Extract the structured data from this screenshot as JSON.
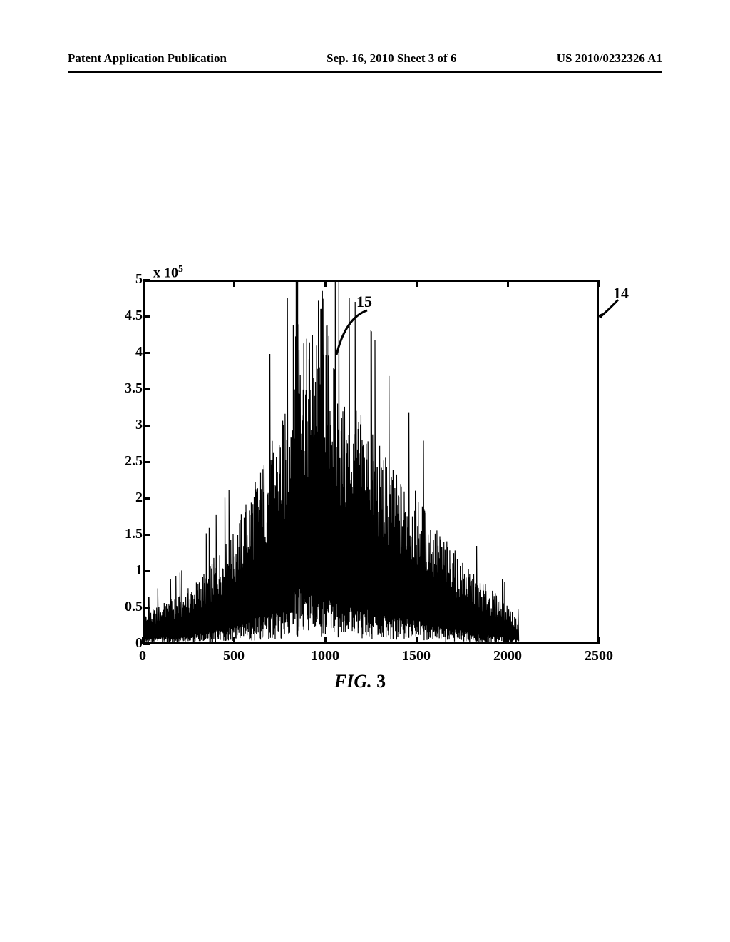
{
  "header": {
    "left": "Patent Application Publication",
    "center": "Sep. 16, 2010  Sheet 3 of 6",
    "right": "US 2010/0232326 A1"
  },
  "chart": {
    "type": "line",
    "y_exponent_prefix": "x 10",
    "y_exponent_sup": "5",
    "ylim": [
      0,
      5
    ],
    "yticks": [
      0,
      0.5,
      1,
      1.5,
      2,
      2.5,
      3,
      3.5,
      4,
      4.5,
      5
    ],
    "ytick_labels": [
      "0",
      "0.5",
      "1",
      "1.5",
      "2",
      "2.5",
      "3",
      "3.5",
      "4",
      "4.5",
      "5"
    ],
    "xlim": [
      0,
      2500
    ],
    "xticks": [
      0,
      500,
      1000,
      1500,
      2000,
      2500
    ],
    "xtick_labels": [
      "0",
      "500",
      "1000",
      "1500",
      "2000",
      "2500"
    ],
    "line_color": "#000000",
    "line_width": 1.2,
    "background_color": "#ffffff",
    "border_color": "#000000",
    "border_width": 3,
    "tick_fontsize": 20,
    "tick_fontweight": "bold",
    "envelope_points": [
      [
        0,
        0.35
      ],
      [
        100,
        0.5
      ],
      [
        200,
        0.6
      ],
      [
        300,
        0.8
      ],
      [
        400,
        1.1
      ],
      [
        500,
        1.4
      ],
      [
        600,
        2.0
      ],
      [
        700,
        2.5
      ],
      [
        800,
        3.0
      ],
      [
        850,
        5.0
      ],
      [
        900,
        3.8
      ],
      [
        980,
        4.6
      ],
      [
        1050,
        3.5
      ],
      [
        1100,
        3.0
      ],
      [
        1200,
        2.9
      ],
      [
        1300,
        2.5
      ],
      [
        1400,
        2.1
      ],
      [
        1500,
        1.9
      ],
      [
        1600,
        1.5
      ],
      [
        1700,
        1.2
      ],
      [
        1800,
        0.9
      ],
      [
        1900,
        0.7
      ],
      [
        2000,
        0.5
      ],
      [
        2050,
        0.3
      ]
    ]
  },
  "annotations": {
    "ref_14": "14",
    "ref_15": "15"
  },
  "caption": {
    "prefix": "FIG.",
    "number": "3"
  }
}
